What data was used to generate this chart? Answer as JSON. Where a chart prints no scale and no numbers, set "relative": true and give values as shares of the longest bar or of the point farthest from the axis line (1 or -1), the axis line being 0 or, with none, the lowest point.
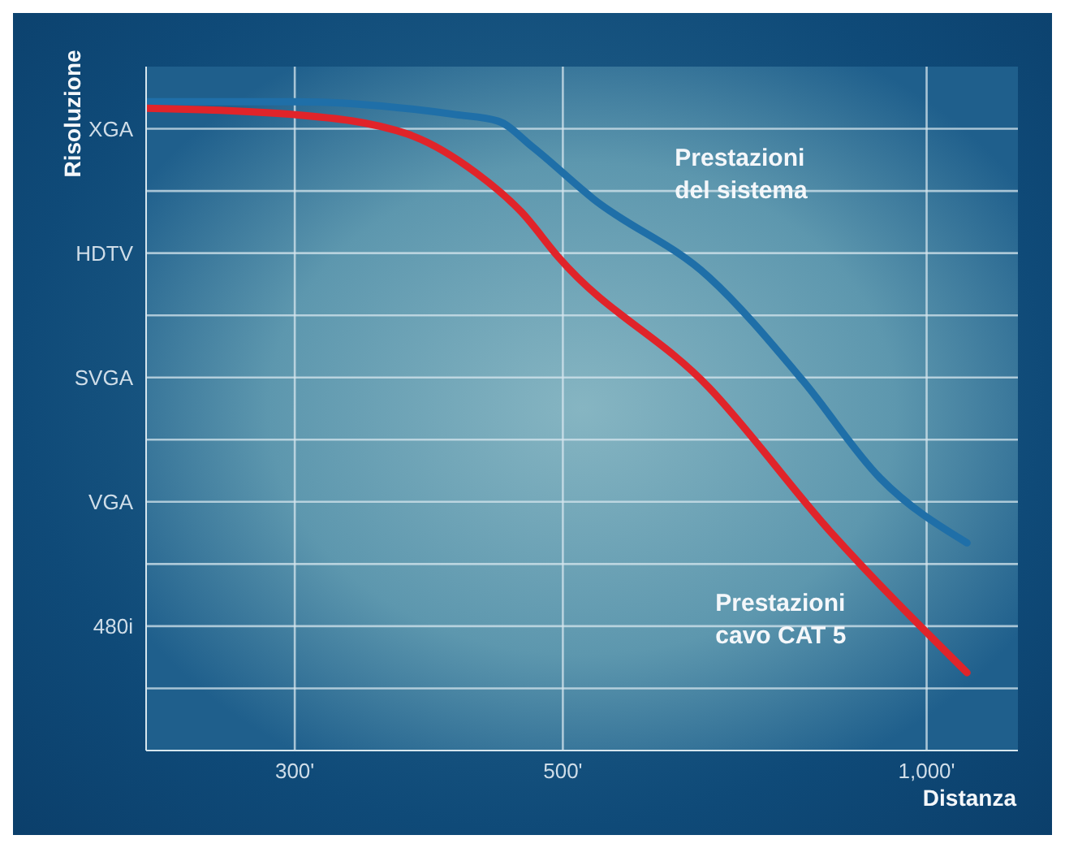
{
  "chart_data": {
    "type": "line",
    "xlabel": "Distanza",
    "ylabel": "Risoluzione",
    "log": "x",
    "xlim": [
      226,
      1190
    ],
    "xticks": [
      {
        "value": 300,
        "label": "300'"
      },
      {
        "value": 500,
        "label": "500'"
      },
      {
        "value": 1000,
        "label": "1,000'"
      }
    ],
    "relative": true,
    "y_categories": [
      "XGA",
      "HDTV",
      "SVGA",
      "VGA",
      "480i"
    ],
    "grid": true,
    "marker": "none",
    "line_style": "solid",
    "series": [
      {
        "name": "Prestazioni del sistema",
        "color": "#1f6fa8",
        "x": [
          226,
          300,
          408,
          442,
          472,
          530,
          660,
          790,
          915,
          1080
        ],
        "values": [
          1,
          1,
          0.98,
          0.97,
          0.93,
          0.85,
          0.73,
          0.57,
          0.42,
          0.32
        ]
      },
      {
        "name": "Prestazioni cavo CAT 5",
        "color": "#e0242a",
        "x": [
          226,
          300,
          372,
          424,
          462,
          496,
          660,
          830,
          1080
        ],
        "values": [
          0.99,
          0.98,
          0.95,
          0.89,
          0.83,
          0.76,
          0.56,
          0.34,
          0.12
        ]
      }
    ]
  }
}
